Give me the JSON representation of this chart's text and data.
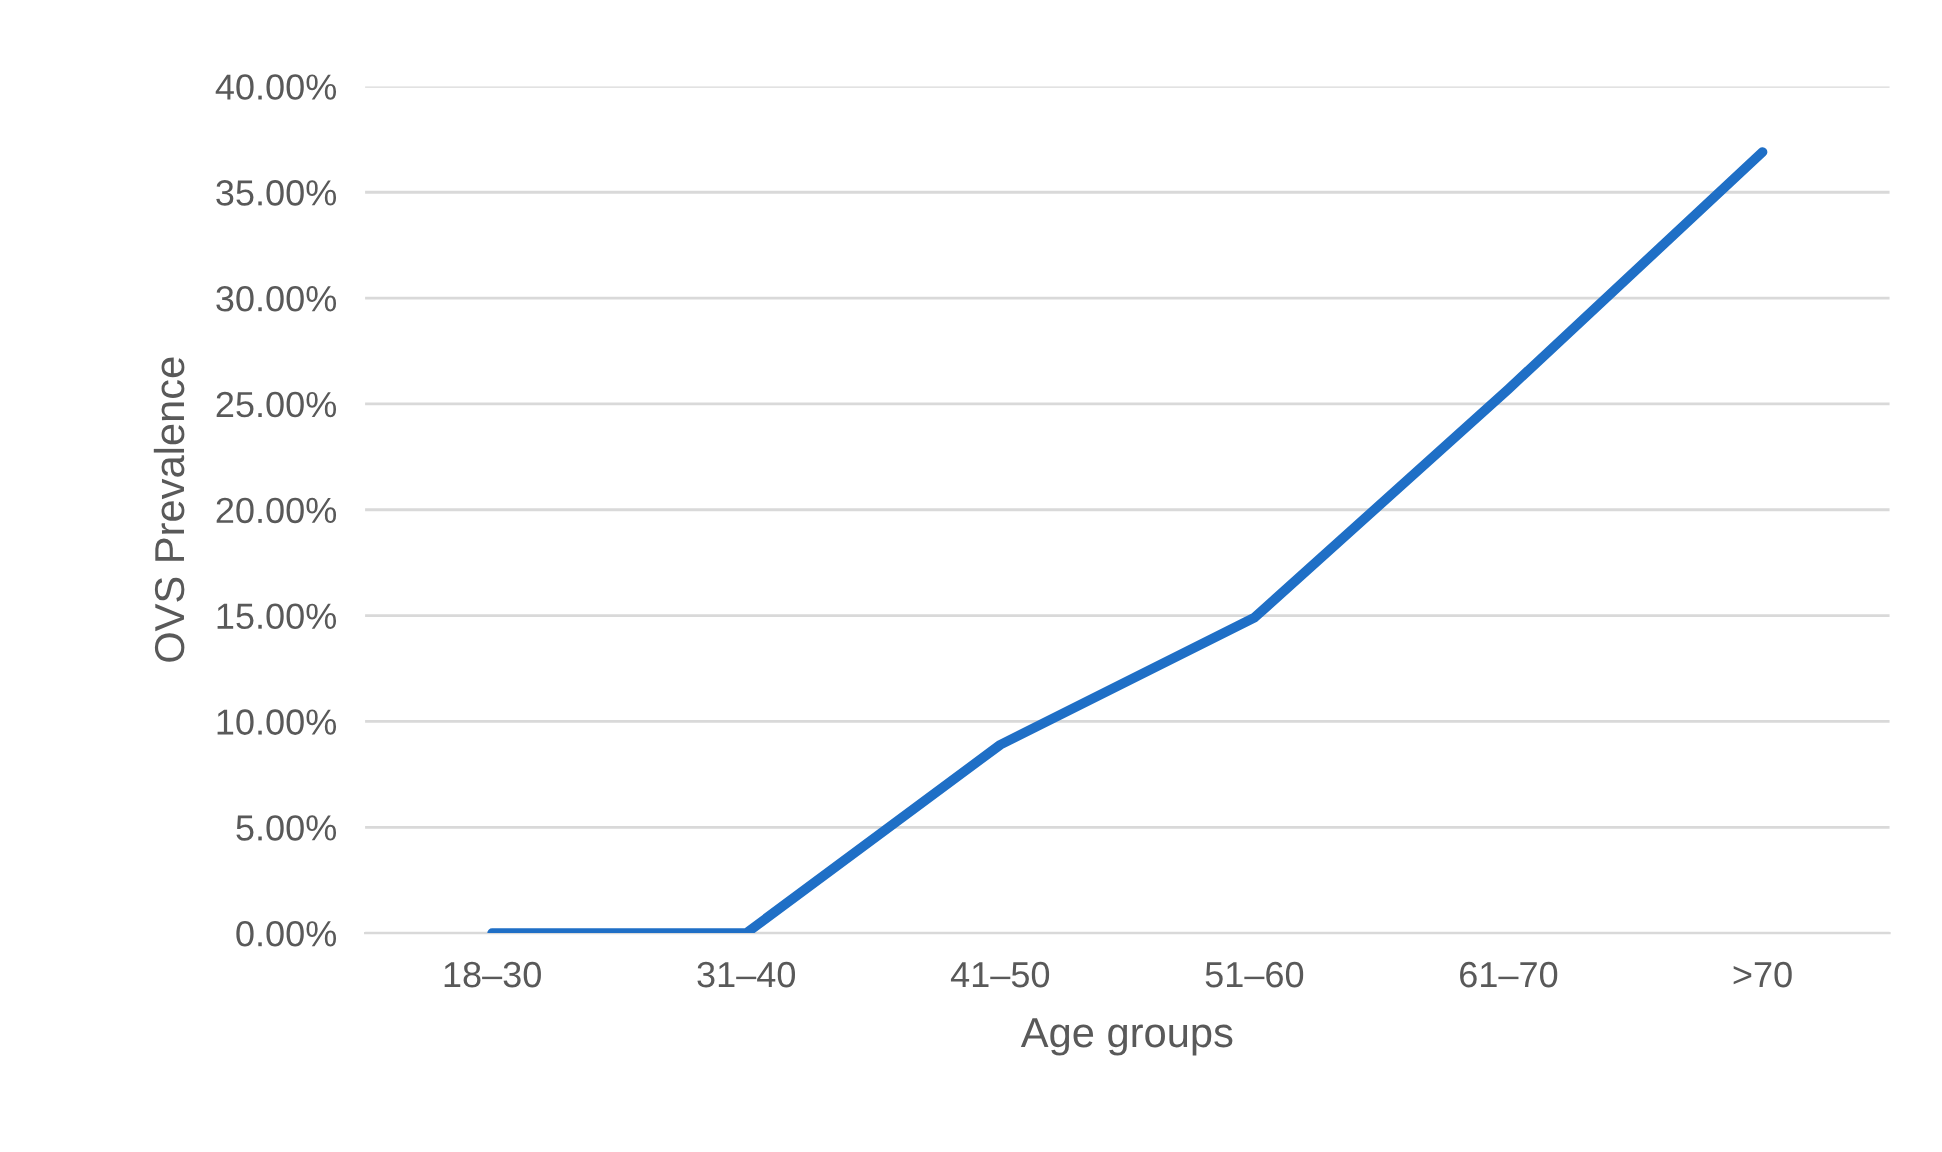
{
  "chart_data": {
    "type": "line",
    "xlabel": "Age groups",
    "ylabel": "OVS Prevalence",
    "categories": [
      "18–30",
      "31–40",
      "41–50",
      "51–60",
      "61–70",
      ">70"
    ],
    "series": [
      {
        "color": "#1f6fc6",
        "values": [
          0,
          0,
          8.9,
          14.9,
          25.7,
          36.9
        ]
      }
    ],
    "ylim": [
      0,
      40
    ],
    "yticks": [
      {
        "value": 0,
        "label": "0.00%"
      },
      {
        "value": 5,
        "label": "5.00%"
      },
      {
        "value": 10,
        "label": "10.00%"
      },
      {
        "value": 15,
        "label": "15.00%"
      },
      {
        "value": 20,
        "label": "20.00%"
      },
      {
        "value": 25,
        "label": "25.00%"
      },
      {
        "value": 30,
        "label": "30.00%"
      },
      {
        "value": 35,
        "label": "35.00%"
      },
      {
        "value": 40,
        "label": "40.00%"
      }
    ],
    "grid": "y",
    "marker": "none",
    "line_style": "solid"
  }
}
